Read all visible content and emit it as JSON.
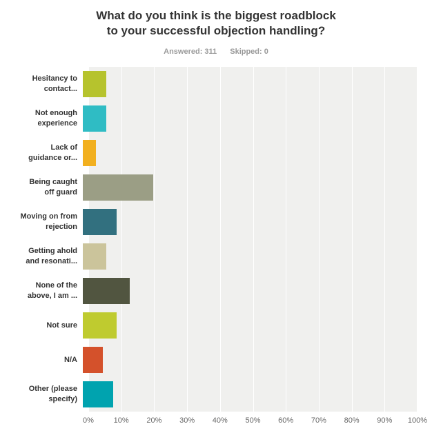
{
  "header": {
    "title_line1": "What do you think is the biggest roadblock",
    "title_line2": "to your successful objection handling?",
    "answered": "Answered: 311",
    "skipped": "Skipped: 0"
  },
  "chart_data": {
    "type": "bar",
    "orientation": "horizontal",
    "title": "What do you think is the biggest roadblock to your successful objection handling?",
    "answered": 311,
    "skipped": 0,
    "categories": [
      "Hesitancy to\ncontact...",
      "Not enough\nexperience",
      "Lack of\nguidance or...",
      "Being caught\noff guard",
      "Moving on from\nrejection",
      "Getting ahold\nand resonati...",
      "None of the\nabove, I am ...",
      "Not sure",
      "N/A",
      "Other (please\nspecify)"
    ],
    "values": [
      7,
      7,
      4,
      21,
      10,
      7,
      14,
      10,
      6,
      9
    ],
    "unit": "%",
    "bar_colors": [
      "#b6c32d",
      "#2fbcc4",
      "#f2b01f",
      "#9b9e85",
      "#32707f",
      "#cbc49b",
      "#515540",
      "#bfcb2f",
      "#d4512b",
      "#00a3af"
    ],
    "x_ticks": [
      "0%",
      "10%",
      "20%",
      "30%",
      "40%",
      "50%",
      "60%",
      "70%",
      "80%",
      "90%",
      "100%"
    ],
    "xlim": [
      0,
      100
    ],
    "grid": true,
    "legend": false,
    "plot_background": "#f0f0ee",
    "gridline_color": "#ffffff"
  }
}
